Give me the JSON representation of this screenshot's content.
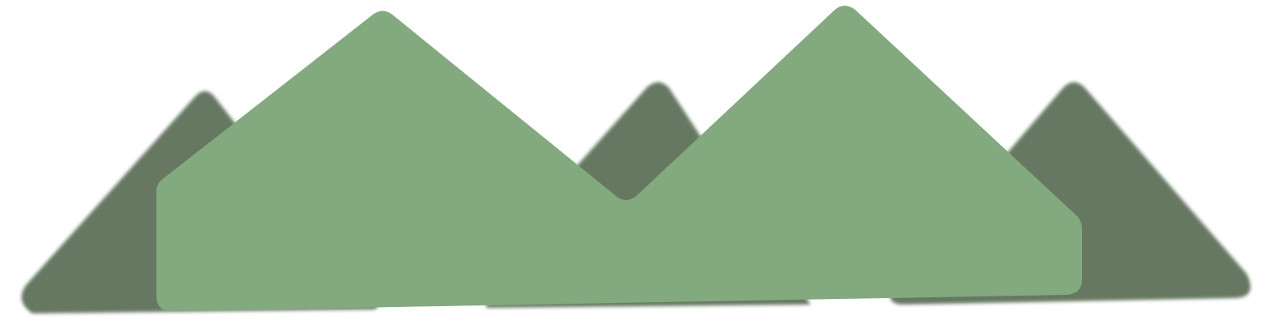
{
  "illustration": {
    "subject": "mountain-range",
    "colors": {
      "background": "#ffffff",
      "back_mountains": "#667862",
      "front_mountains": "#82aa7e"
    }
  }
}
